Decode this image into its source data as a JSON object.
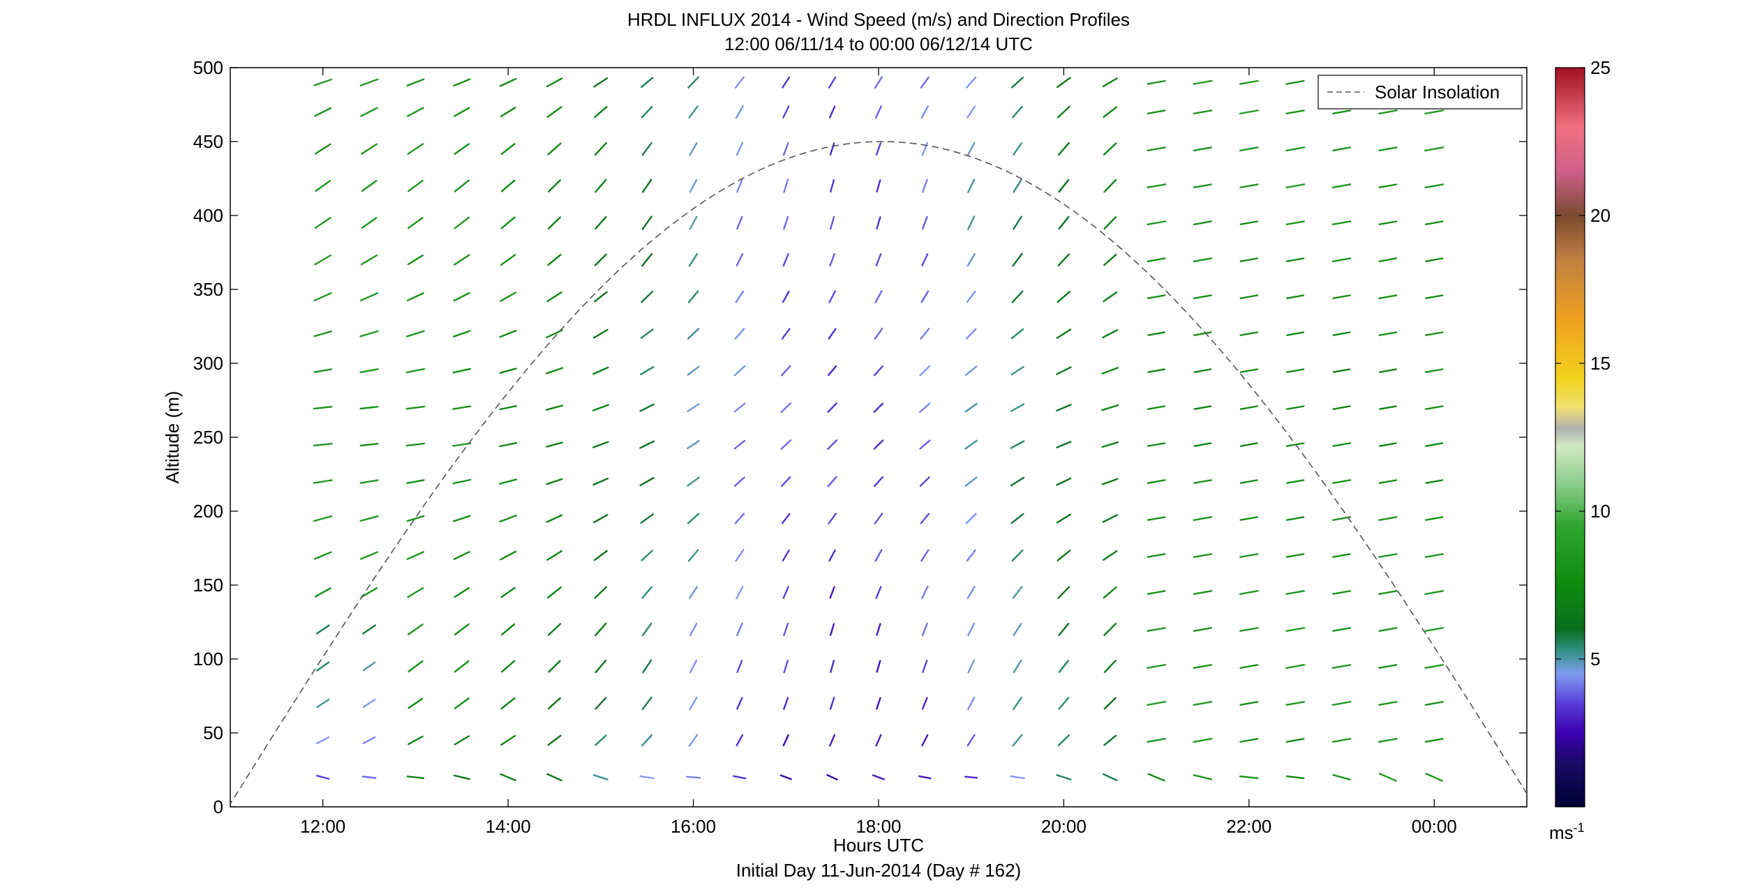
{
  "chart_data": {
    "type": "wind-profile-barbs",
    "title": "HRDL INFLUX 2014 - Wind Speed (m/s) and Direction Profiles",
    "subtitle": "12:00 06/11/14 to 00:00 06/12/14  UTC",
    "xlabel": "Hours UTC",
    "xlabel2": "Initial Day 11-Jun-2014 (Day # 162)",
    "ylabel": "Altitude (m)",
    "xlim_hours": [
      11.0,
      25.0
    ],
    "ylim": [
      0,
      500
    ],
    "x_ticks": [
      12,
      14,
      16,
      18,
      20,
      22,
      24
    ],
    "x_tick_labels": [
      "12:00",
      "14:00",
      "16:00",
      "18:00",
      "20:00",
      "22:00",
      "00:00"
    ],
    "y_ticks": [
      0,
      50,
      100,
      150,
      200,
      250,
      300,
      350,
      400,
      450,
      500
    ],
    "y_tick_labels": [
      "0",
      "50",
      "100",
      "150",
      "200",
      "250",
      "300",
      "350",
      "400",
      "450",
      "500"
    ],
    "legend": {
      "position": "top-right",
      "entries": [
        {
          "label": "Solar Insolation",
          "style": "dashed",
          "color": "#555555"
        }
      ]
    },
    "colorbar": {
      "range": [
        0,
        25
      ],
      "ticks": [
        5,
        10,
        15,
        20,
        25
      ],
      "tick_labels": [
        "5",
        "10",
        "15",
        "20",
        "25"
      ],
      "unit_label": "ms",
      "unit_exp": "-1",
      "color_stops": [
        [
          0,
          "#000033"
        ],
        [
          1.5,
          "#1a0a66"
        ],
        [
          2.5,
          "#3a00b0"
        ],
        [
          3.5,
          "#5a3ed8"
        ],
        [
          4.5,
          "#7f9cf0"
        ],
        [
          5.3,
          "#2f8f80"
        ],
        [
          6.0,
          "#0a6e1e"
        ],
        [
          7.5,
          "#0e8a0e"
        ],
        [
          9.5,
          "#2fa52f"
        ],
        [
          11.0,
          "#8fd08f"
        ],
        [
          12.2,
          "#cfe8c0"
        ],
        [
          12.8,
          "#b0b0b0"
        ],
        [
          13.5,
          "#f0e070"
        ],
        [
          14.5,
          "#f2d21c"
        ],
        [
          16.5,
          "#f0a020"
        ],
        [
          18.5,
          "#c08040"
        ],
        [
          20.0,
          "#7a4a30"
        ],
        [
          21.5,
          "#d0608a"
        ],
        [
          23.0,
          "#f07080"
        ],
        [
          25.0,
          "#a01020"
        ]
      ]
    },
    "solar_insolation": {
      "peak_hour": 17.6,
      "peak_altitude": 450,
      "zero_hours": [
        10.98,
        25.09
      ],
      "note_shape": "half-sine"
    },
    "wind_profiles": {
      "profile_times_hours": [
        12.0,
        12.5,
        13.0,
        13.5,
        14.0,
        14.5,
        15.0,
        15.5,
        16.0,
        16.5,
        17.0,
        17.5,
        18.0,
        18.5,
        19.0,
        19.5,
        20.0,
        20.5,
        21.0,
        21.5,
        22.0,
        22.5,
        23.0,
        23.5,
        24.0
      ],
      "altitudes_m": [
        20,
        45,
        70,
        95,
        120,
        145,
        170,
        195,
        220,
        245,
        270,
        295,
        320,
        345,
        370,
        395,
        420,
        445,
        470,
        490
      ],
      "note": "Each marker is a wind barb segment at (time, altitude) oriented by wind direction and colored by speed (m/s)."
    }
  }
}
